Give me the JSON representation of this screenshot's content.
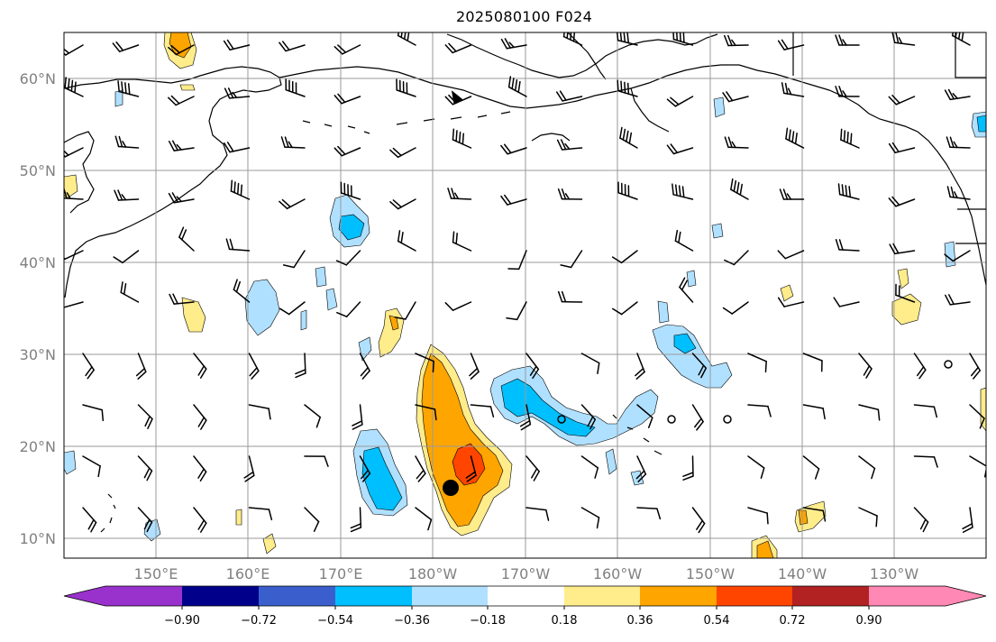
{
  "title": "2025080100 F024",
  "map": {
    "lat_labels": [
      "60°N",
      "50°N",
      "40°N",
      "30°N",
      "20°N",
      "10°N"
    ],
    "lon_labels": [
      "150°E",
      "160°E",
      "170°E",
      "180°W",
      "170°W",
      "160°W",
      "150°W",
      "140°W",
      "130°W"
    ],
    "grid_color": "#9a9a9a",
    "label_color": "#808080",
    "tropical_cyclone_center": {
      "lat": 15.8,
      "lon": 178.0,
      "lon_hemisphere": "E"
    }
  },
  "colorbar": {
    "tick_labels": [
      "−0.90",
      "−0.72",
      "−0.54",
      "−0.36",
      "−0.18",
      "0.18",
      "0.36",
      "0.54",
      "0.72",
      "0.90"
    ],
    "colors": [
      "#9932cc",
      "#00008b",
      "#3a5fcd",
      "#00bfff",
      "#b0e0ff",
      "#ffffff",
      "#ffec8b",
      "#ffa500",
      "#ff4500",
      "#b22222",
      "#ff88b4"
    ],
    "extend": "both"
  }
}
